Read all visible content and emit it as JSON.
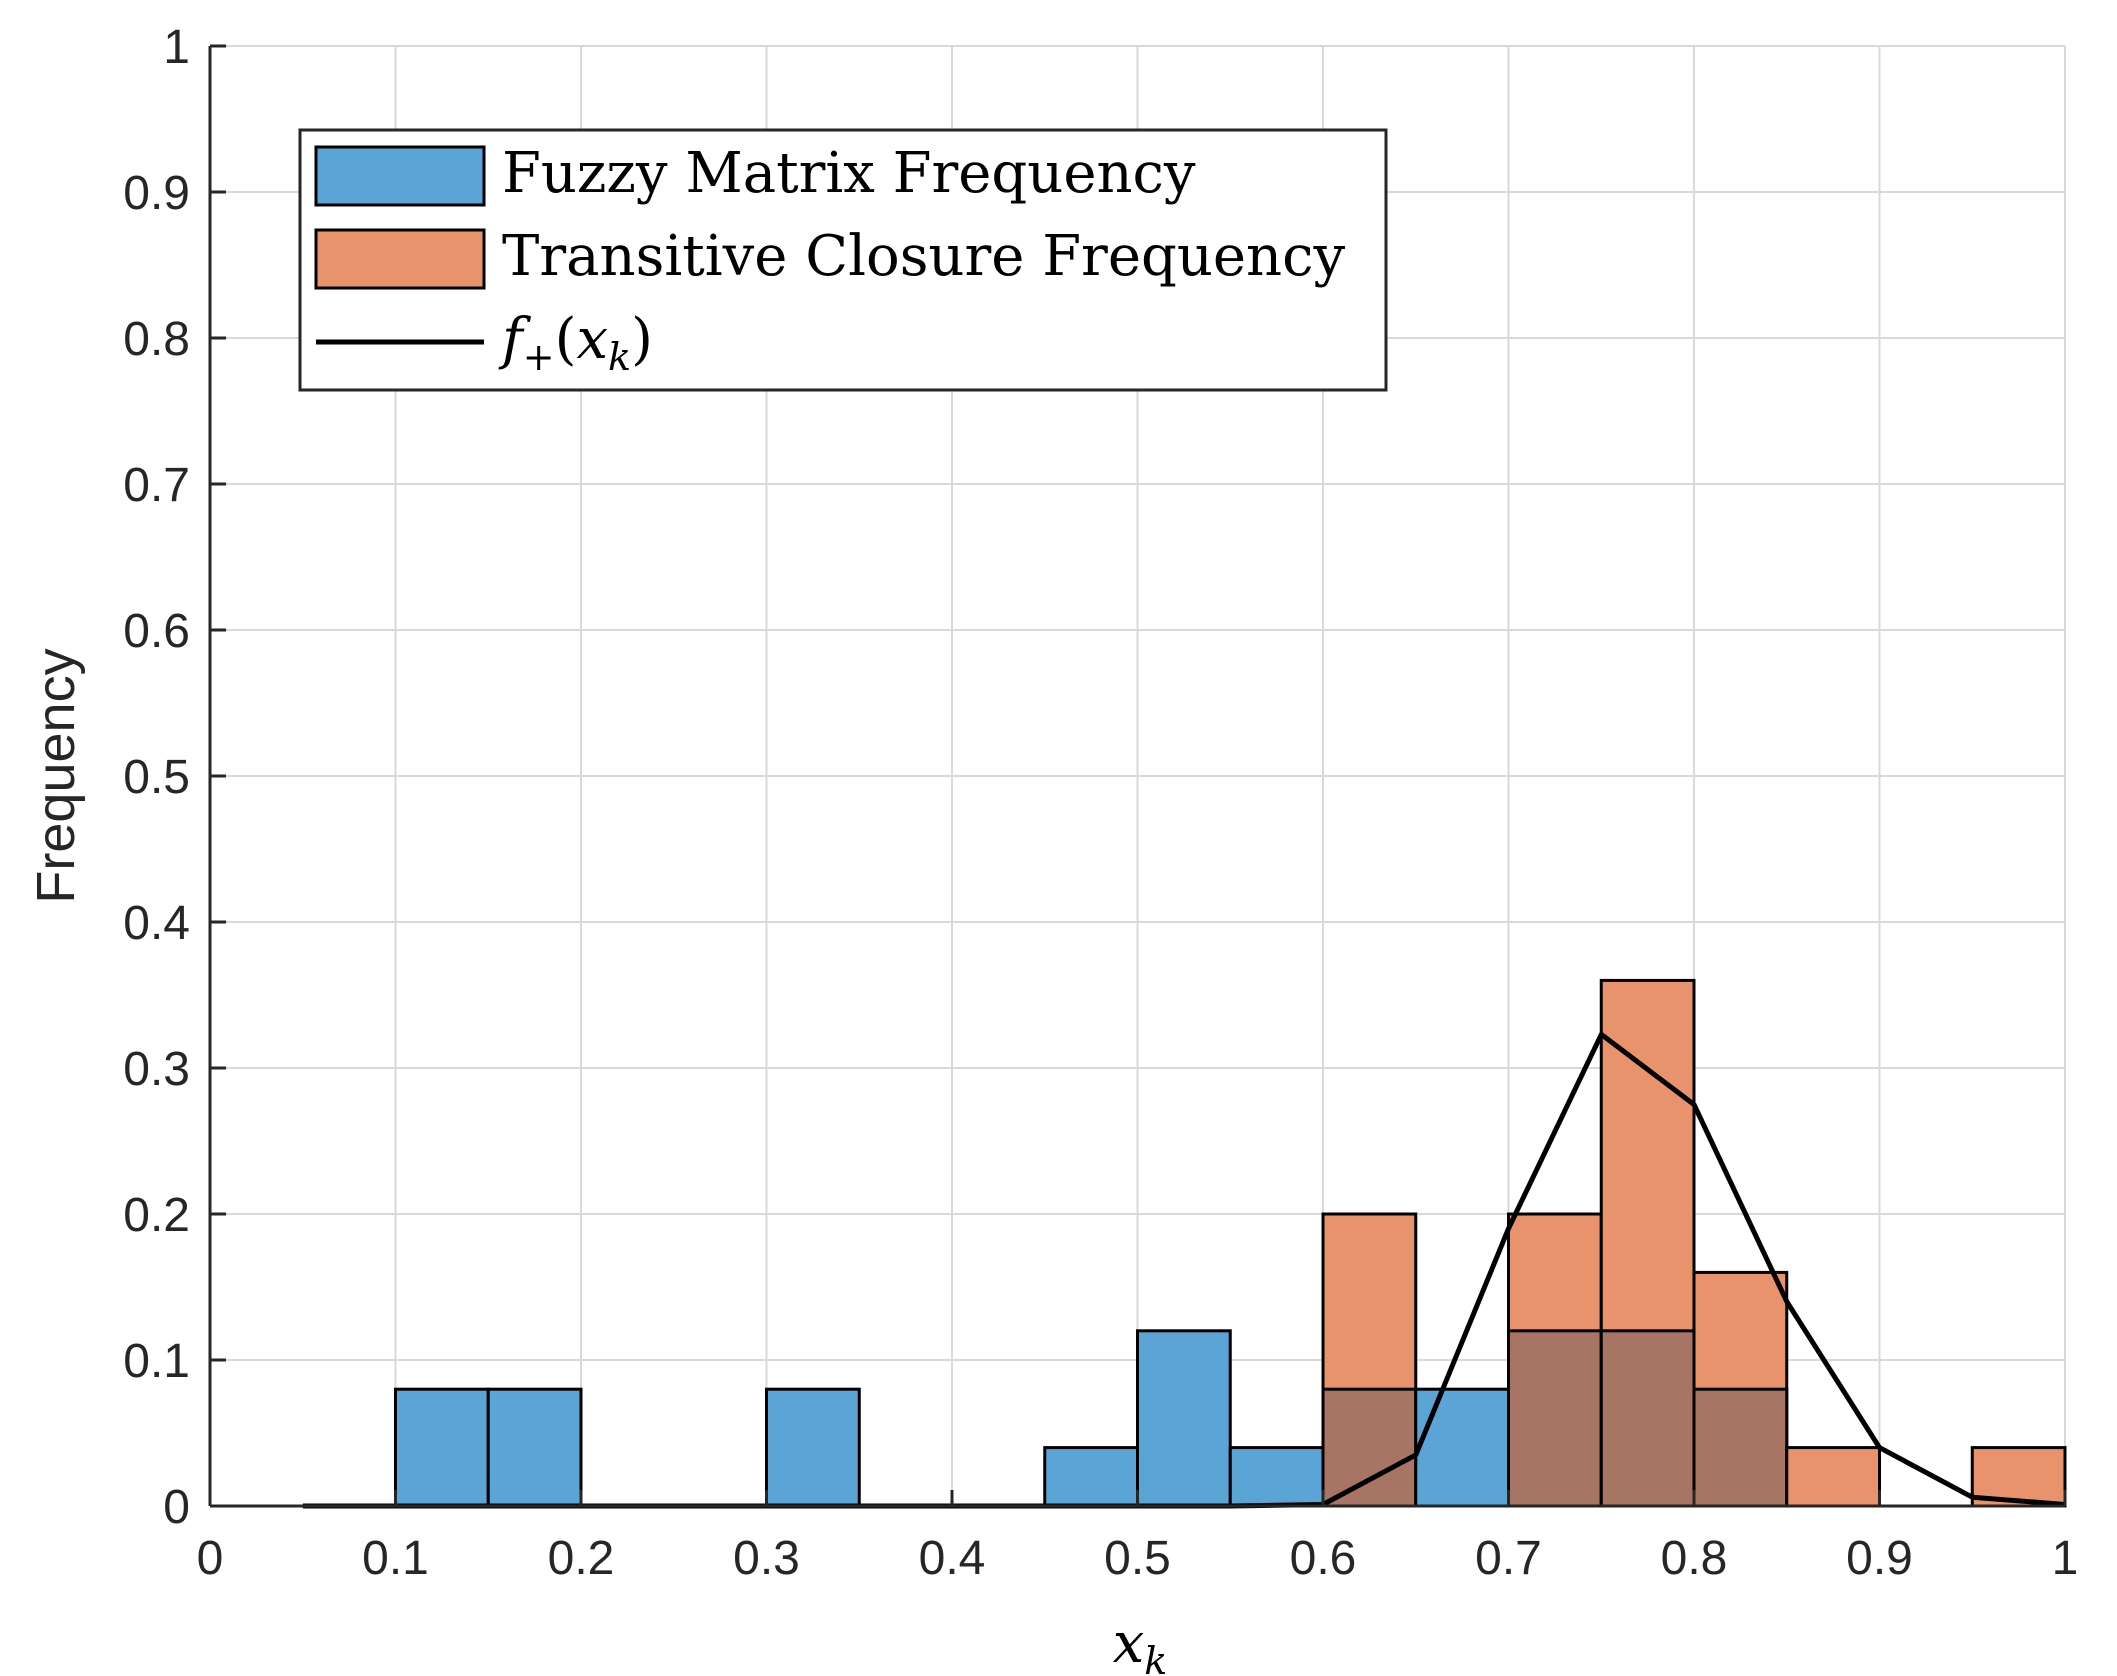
{
  "chart_data": {
    "type": "bar",
    "subtype": "overlaid-histogram-with-line",
    "title": "",
    "xlabel": "x",
    "xlabel_subscript": "k",
    "ylabel": "Frequency",
    "xlim": [
      0,
      1
    ],
    "ylim": [
      0,
      1
    ],
    "grid": true,
    "legend_position": "top-left",
    "x_ticks": [
      "0",
      "0.1",
      "0.2",
      "0.3",
      "0.4",
      "0.5",
      "0.6",
      "0.7",
      "0.8",
      "0.9",
      "1"
    ],
    "y_ticks": [
      "0",
      "0.1",
      "0.2",
      "0.3",
      "0.4",
      "0.5",
      "0.6",
      "0.7",
      "0.8",
      "0.9",
      "1"
    ],
    "bin_edges": [
      0.05,
      0.1,
      0.15,
      0.2,
      0.25,
      0.3,
      0.35,
      0.4,
      0.45,
      0.5,
      0.55,
      0.6,
      0.65,
      0.7,
      0.75,
      0.8,
      0.85,
      0.9,
      0.95,
      1.0
    ],
    "series": [
      {
        "name": "Fuzzy Matrix Frequency",
        "kind": "histogram",
        "color": "#5ba4d6",
        "values": [
          0,
          0.08,
          0.08,
          0,
          0,
          0.08,
          0,
          0,
          0.04,
          0.12,
          0.04,
          0.08,
          0.08,
          0.12,
          0.12,
          0.08,
          0,
          0,
          0
        ]
      },
      {
        "name": "Transitive Closure Frequency",
        "kind": "histogram",
        "color": "#e8936c",
        "values": [
          0,
          0,
          0,
          0,
          0,
          0,
          0,
          0,
          0,
          0,
          0,
          0.2,
          0,
          0.2,
          0.36,
          0.16,
          0.04,
          0,
          0.04
        ]
      },
      {
        "name": "f+(xk)",
        "kind": "line",
        "color": "#000000",
        "x": [
          0.05,
          0.1,
          0.15,
          0.2,
          0.25,
          0.3,
          0.35,
          0.4,
          0.45,
          0.5,
          0.55,
          0.6,
          0.65,
          0.7,
          0.75,
          0.8,
          0.85,
          0.9,
          0.95,
          1.0
        ],
        "y": [
          0,
          0,
          0,
          0,
          0,
          0,
          0,
          0,
          0,
          0,
          0,
          0.001,
          0.035,
          0.19,
          0.323,
          0.275,
          0.14,
          0.04,
          0.006,
          0.001
        ]
      }
    ],
    "overlap_color": "#a87565"
  },
  "legend": {
    "items": [
      {
        "label": "Fuzzy Matrix Frequency"
      },
      {
        "label": "Transitive Closure Frequency"
      },
      {
        "label_main": "f",
        "label_sub": "+",
        "label_open": "(",
        "label_var": "x",
        "label_var_sub": "k",
        "label_close": ")"
      }
    ]
  }
}
